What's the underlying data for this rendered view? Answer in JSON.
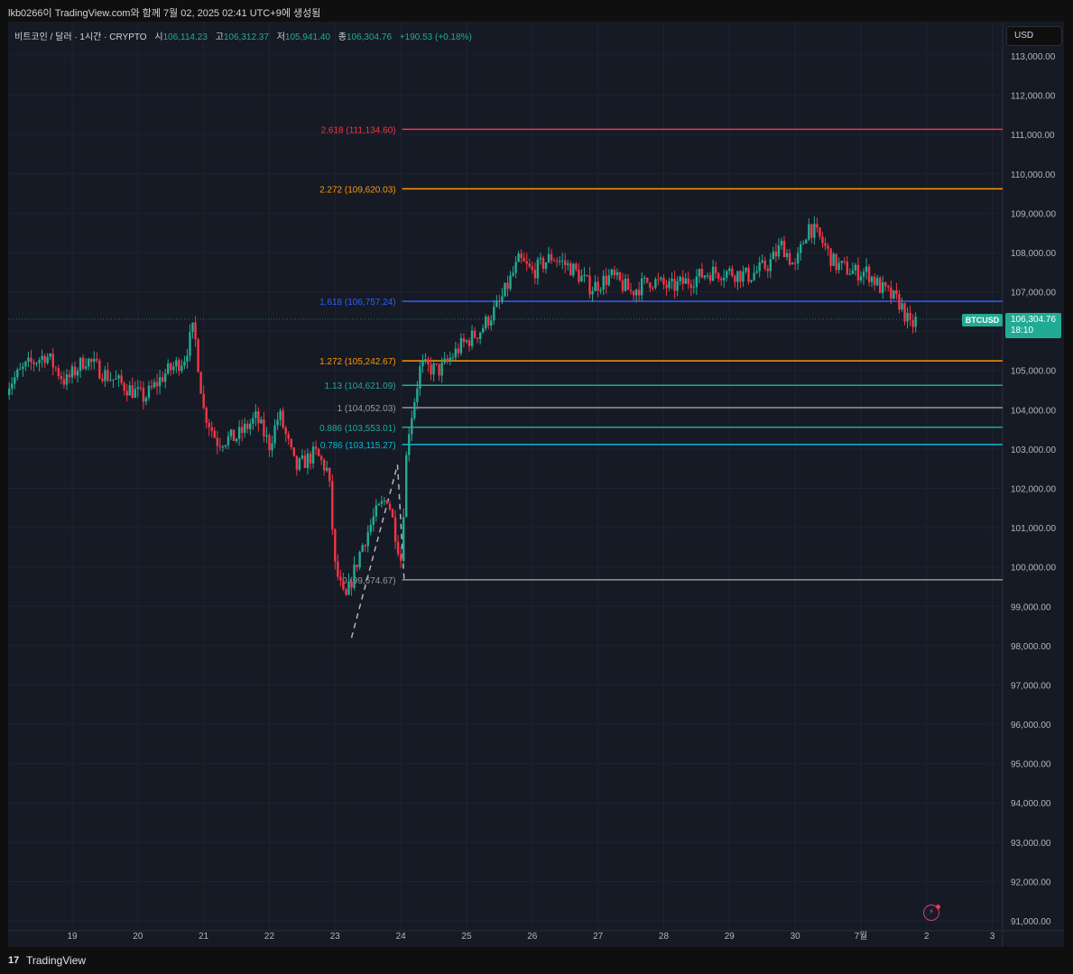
{
  "header": {
    "caption": "lkb0266이 TradingView.com와 함께 7월 02, 2025 02:41 UTC+9에 생성됨"
  },
  "legend": {
    "symbol": "비트코인 / 달러 · 1시간 · CRYPTO",
    "open_label": "시",
    "open_value": "106,114.23",
    "high_label": "고",
    "high_value": "106,312.37",
    "low_label": "저",
    "low_value": "105,941.40",
    "close_label": "종",
    "close_value": "106,304.76",
    "change": "+190.53 (+0.18%)"
  },
  "currency": "USD",
  "last_price": {
    "symbol": "BTCUSD",
    "price": "106,304.76",
    "countdown": "18:10"
  },
  "footer": {
    "logo_mark": "17",
    "brand": "TradingView"
  },
  "colors": {
    "up": "#22ab94",
    "down": "#f23645",
    "background": "#161a25",
    "grid": "#1f2330",
    "axis_text": "#b2b5be"
  },
  "icons": {
    "alert": "lightning-icon"
  },
  "chart_data": {
    "type": "candlestick",
    "title": "비트코인 / 달러 · 1시간 · CRYPTO",
    "xlabel": "",
    "ylabel": "",
    "ylim": [
      91000,
      113000
    ],
    "y_ticks": [
      113000,
      112000,
      111000,
      110000,
      109000,
      108000,
      107000,
      106000,
      105000,
      104000,
      103000,
      102000,
      101000,
      100000,
      99000,
      98000,
      97000,
      96000,
      95000,
      94000,
      93000,
      92000,
      91000
    ],
    "y_tick_labels": [
      "113,000.00",
      "112,000.00",
      "111,000.00",
      "110,000.00",
      "109,000.00",
      "108,000.00",
      "107,000.00",
      "106,000.00",
      "105,000.00",
      "104,000.00",
      "103,000.00",
      "102,000.00",
      "101,000.00",
      "100,000.00",
      "99,000.00",
      "98,000.00",
      "97,000.00",
      "96,000.00",
      "95,000.00",
      "94,000.00",
      "93,000.00",
      "92,000.00",
      "91,000.00"
    ],
    "x_ticks": [
      "19",
      "20",
      "21",
      "22",
      "23",
      "24",
      "25",
      "26",
      "27",
      "28",
      "29",
      "30",
      "7월",
      "2",
      "3"
    ],
    "grid": true,
    "last_close": 106304.76,
    "fib_levels": [
      {
        "label": "2.618 (111,134.60)",
        "value": 111134.6,
        "color": "#f23645"
      },
      {
        "label": "2.272 (109,620.03)",
        "value": 109620.03,
        "color": "#ff9800"
      },
      {
        "label": "1.618 (106,757.24)",
        "value": 106757.24,
        "color": "#2962ff"
      },
      {
        "label": "1.272 (105,242.67)",
        "value": 105242.67,
        "color": "#ff9800"
      },
      {
        "label": "1.13 (104,621.09)",
        "value": 104621.09,
        "color": "#26a69a"
      },
      {
        "label": "1 (104,052.03)",
        "value": 104052.03,
        "color": "#9598a1"
      },
      {
        "label": "0.886 (103,553.01)",
        "value": 103553.01,
        "color": "#26a69a"
      },
      {
        "label": "0.786 (103,115.27)",
        "value": 103115.27,
        "color": "#00bcd4"
      },
      {
        "label": "0 (99,674.67)",
        "value": 99674.67,
        "color": "#9598a1"
      }
    ],
    "fib_trend": [
      [
        23.25,
        98200
      ],
      [
        23.95,
        102600
      ],
      [
        24.05,
        99674.67
      ]
    ],
    "anchors": [
      [
        18.0,
        104600
      ],
      [
        18.3,
        105100
      ],
      [
        18.6,
        105400
      ],
      [
        18.9,
        104700
      ],
      [
        19.2,
        105300
      ],
      [
        19.5,
        104900
      ],
      [
        19.8,
        104600
      ],
      [
        20.1,
        104300
      ],
      [
        20.4,
        104900
      ],
      [
        20.7,
        105300
      ],
      [
        20.85,
        106100
      ],
      [
        21.0,
        104000
      ],
      [
        21.2,
        103200
      ],
      [
        21.5,
        103300
      ],
      [
        21.8,
        103800
      ],
      [
        22.0,
        103100
      ],
      [
        22.15,
        103900
      ],
      [
        22.4,
        102500
      ],
      [
        22.7,
        102900
      ],
      [
        22.9,
        102400
      ],
      [
        23.0,
        100000
      ],
      [
        23.15,
        99100
      ],
      [
        23.4,
        100500
      ],
      [
        23.6,
        101300
      ],
      [
        23.8,
        101800
      ],
      [
        24.0,
        100200
      ],
      [
        24.1,
        103300
      ],
      [
        24.3,
        105100
      ],
      [
        24.6,
        105000
      ],
      [
        24.9,
        105600
      ],
      [
        25.2,
        106000
      ],
      [
        25.5,
        106700
      ],
      [
        25.8,
        107800
      ],
      [
        26.0,
        107500
      ],
      [
        26.3,
        107900
      ],
      [
        26.6,
        107600
      ],
      [
        26.9,
        107100
      ],
      [
        27.2,
        107400
      ],
      [
        27.5,
        107000
      ],
      [
        27.8,
        107300
      ],
      [
        28.1,
        107100
      ],
      [
        28.4,
        107300
      ],
      [
        28.7,
        107500
      ],
      [
        29.0,
        107500
      ],
      [
        29.3,
        107400
      ],
      [
        29.6,
        107700
      ],
      [
        29.8,
        108200
      ],
      [
        30.0,
        107600
      ],
      [
        30.2,
        108700
      ],
      [
        30.4,
        108300
      ],
      [
        30.6,
        107700
      ],
      [
        30.9,
        107500
      ],
      [
        31.1,
        107500
      ],
      [
        31.3,
        107100
      ],
      [
        31.6,
        106700
      ],
      [
        31.75,
        106100
      ],
      [
        31.85,
        106300
      ]
    ]
  }
}
